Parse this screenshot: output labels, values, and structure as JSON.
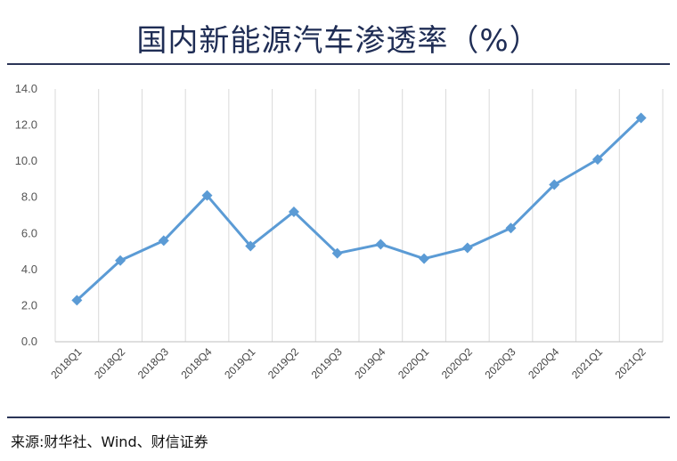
{
  "header": {
    "title": "国内新能源汽车渗透率（%）"
  },
  "footer": {
    "source": "来源:财华社、Wind、财信证券"
  },
  "chart_data": {
    "type": "line",
    "title": "国内新能源汽车渗透率（%）",
    "categories": [
      "2018Q1",
      "2018Q2",
      "2018Q3",
      "2018Q4",
      "2019Q1",
      "2019Q2",
      "2019Q3",
      "2019Q4",
      "2020Q1",
      "2020Q2",
      "2020Q3",
      "2020Q4",
      "2021Q1",
      "2021Q2"
    ],
    "series": [
      {
        "values": [
          2.3,
          4.5,
          5.6,
          8.1,
          5.3,
          7.2,
          4.9,
          5.4,
          4.6,
          5.2,
          6.3,
          8.7,
          10.1,
          12.4
        ]
      }
    ],
    "yticks": [
      "0.0",
      "2.0",
      "4.0",
      "6.0",
      "8.0",
      "10.0",
      "12.0",
      "14.0"
    ],
    "ylim": [
      0,
      14
    ],
    "grid": "vertical",
    "line_color": "#5b9bd5"
  }
}
